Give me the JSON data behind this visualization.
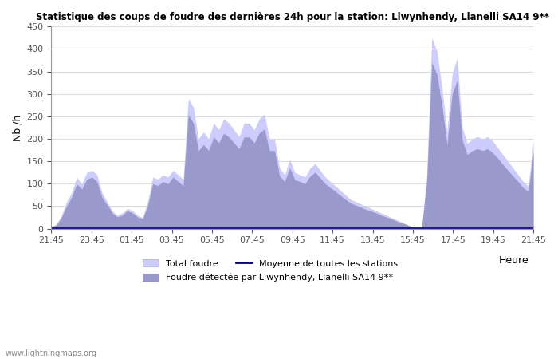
{
  "title": "Statistique des coups de foudre des dernières 24h pour la station: Llwynhendy, Llanelli SA14 9**",
  "ylabel": "Nb /h",
  "xlabel": "Heure",
  "watermark": "www.lightningmaps.org",
  "legend_total": "Total foudre",
  "legend_moyenne": "Moyenne de toutes les stations",
  "legend_foudre": "Foudre détectée par Llwynhendy, Llanelli SA14 9**",
  "ylim": [
    0,
    450
  ],
  "x_labels": [
    "21:45",
    "23:45",
    "01:45",
    "03:45",
    "05:45",
    "07:45",
    "09:45",
    "11:45",
    "13:45",
    "15:45",
    "17:45",
    "19:45",
    "21:45"
  ],
  "color_total_fill": "#ccccff",
  "color_detected_fill": "#9999cc",
  "color_mean_line": "#00008b",
  "total_values": [
    5,
    10,
    30,
    60,
    80,
    115,
    100,
    125,
    130,
    120,
    80,
    60,
    40,
    30,
    35,
    45,
    40,
    30,
    25,
    60,
    115,
    110,
    120,
    115,
    130,
    120,
    110,
    290,
    270,
    200,
    215,
    200,
    235,
    220,
    245,
    235,
    220,
    205,
    235,
    235,
    220,
    245,
    255,
    200,
    200,
    135,
    120,
    155,
    125,
    120,
    115,
    135,
    145,
    130,
    115,
    105,
    95,
    85,
    75,
    65,
    60,
    55,
    50,
    45,
    40,
    35,
    30,
    25,
    20,
    15,
    10,
    5,
    3,
    2,
    120,
    425,
    395,
    315,
    215,
    345,
    380,
    225,
    190,
    200,
    205,
    200,
    205,
    195,
    180,
    165,
    150,
    135,
    120,
    105,
    95,
    195
  ],
  "detected_values": [
    4,
    8,
    25,
    50,
    70,
    100,
    88,
    110,
    115,
    105,
    70,
    53,
    35,
    26,
    30,
    40,
    35,
    26,
    22,
    52,
    100,
    96,
    105,
    100,
    115,
    105,
    96,
    253,
    235,
    174,
    187,
    174,
    204,
    191,
    213,
    204,
    191,
    178,
    204,
    204,
    191,
    213,
    222,
    174,
    174,
    117,
    105,
    135,
    109,
    105,
    100,
    117,
    126,
    113,
    100,
    91,
    83,
    74,
    65,
    57,
    52,
    48,
    43,
    39,
    35,
    30,
    26,
    22,
    17,
    13,
    9,
    4,
    3,
    2,
    105,
    370,
    344,
    274,
    187,
    300,
    330,
    196,
    165,
    174,
    178,
    174,
    178,
    169,
    157,
    143,
    130,
    117,
    105,
    91,
    83,
    170
  ],
  "mean_values": [
    2,
    2,
    2,
    2,
    2,
    2,
    2,
    2,
    2,
    2,
    2,
    2,
    2,
    2,
    2,
    2,
    2,
    2,
    2,
    2,
    2,
    2,
    2,
    2,
    2,
    2,
    2,
    2,
    2,
    2,
    2,
    2,
    2,
    2,
    2,
    2,
    2,
    2,
    2,
    2,
    2,
    2,
    2,
    2,
    2,
    2,
    2,
    2,
    2,
    2,
    2,
    2,
    2,
    2,
    2,
    2,
    2,
    2,
    2,
    2,
    2,
    2,
    2,
    2,
    2,
    2,
    2,
    2,
    2,
    2,
    2,
    2,
    2,
    2,
    2,
    2,
    2,
    2,
    2,
    2,
    2,
    2,
    2,
    2,
    2,
    2,
    2,
    2,
    2,
    2,
    2,
    2,
    2,
    2,
    2,
    2
  ]
}
